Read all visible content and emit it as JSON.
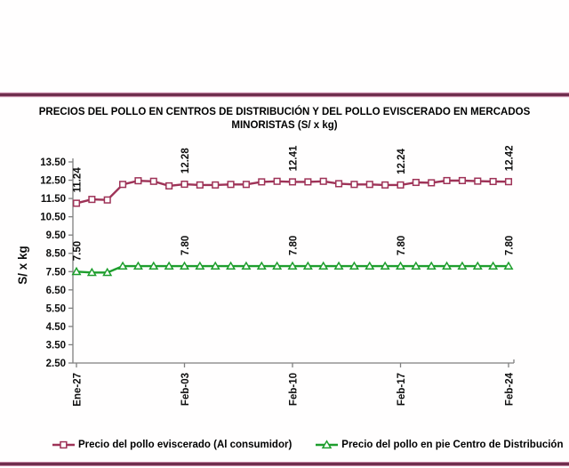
{
  "title": {
    "line1": "PRECIOS DEL POLLO EN CENTROS DE DISTRIBUCIÓN Y DEL POLLO EVISCERADO EN MERCADOS",
    "line2": "MINORISTAS (S/ x kg)"
  },
  "decor": {
    "rule_dark": "#6f2e4e",
    "rule_mid": "#c488a5",
    "rule_light": "#f6eaf1"
  },
  "chart_data": {
    "type": "line",
    "title": "PRECIOS DEL POLLO EN CENTROS DE DISTRIBUCIÓN Y DEL POLLO EVISCERADO EN MERCADOS MINORISTAS (S/ x kg)",
    "xlabel": "",
    "ylabel": "S/ x kg",
    "ylim": [
      2.5,
      13.5
    ],
    "ytick_step": 1.0,
    "ytick_labels": [
      "2.50",
      "3.50",
      "4.50",
      "5.50",
      "6.50",
      "7.50",
      "8.50",
      "9.50",
      "10.50",
      "11.50",
      "12.50",
      "13.50"
    ],
    "x_tick_labels": [
      "Ene-27",
      "Feb-03",
      "Feb-10",
      "Feb-17",
      "Feb-24"
    ],
    "x_tick_indices": [
      0,
      7,
      14,
      21,
      28
    ],
    "grid": false,
    "legend_position": "bottom",
    "axis_color": "#7f7f7f",
    "text_color": "#0d0d0d",
    "series": [
      {
        "name": "Precio del pollo eviscerado (Al consumidor)",
        "color": "#9e3257",
        "marker": "square",
        "values": [
          11.24,
          11.45,
          11.42,
          12.27,
          12.47,
          12.44,
          12.19,
          12.28,
          12.24,
          12.24,
          12.27,
          12.27,
          12.41,
          12.44,
          12.41,
          12.41,
          12.44,
          12.31,
          12.27,
          12.27,
          12.24,
          12.24,
          12.38,
          12.36,
          12.48,
          12.48,
          12.45,
          12.43,
          12.42
        ],
        "point_labels": {
          "0": "11.24",
          "7": "12.28",
          "14": "12.41",
          "21": "12.24",
          "28": "12.42"
        }
      },
      {
        "name": "Precio del pollo en pie Centro de Distribución",
        "color": "#1e9e2d",
        "marker": "triangle",
        "values": [
          7.5,
          7.45,
          7.45,
          7.8,
          7.8,
          7.8,
          7.8,
          7.8,
          7.8,
          7.8,
          7.8,
          7.8,
          7.8,
          7.8,
          7.8,
          7.8,
          7.8,
          7.8,
          7.8,
          7.8,
          7.8,
          7.8,
          7.8,
          7.8,
          7.8,
          7.8,
          7.8,
          7.8,
          7.8
        ],
        "point_labels": {
          "0": "7.50",
          "7": "7.80",
          "14": "7.80",
          "21": "7.80",
          "28": "7.80"
        }
      }
    ]
  }
}
